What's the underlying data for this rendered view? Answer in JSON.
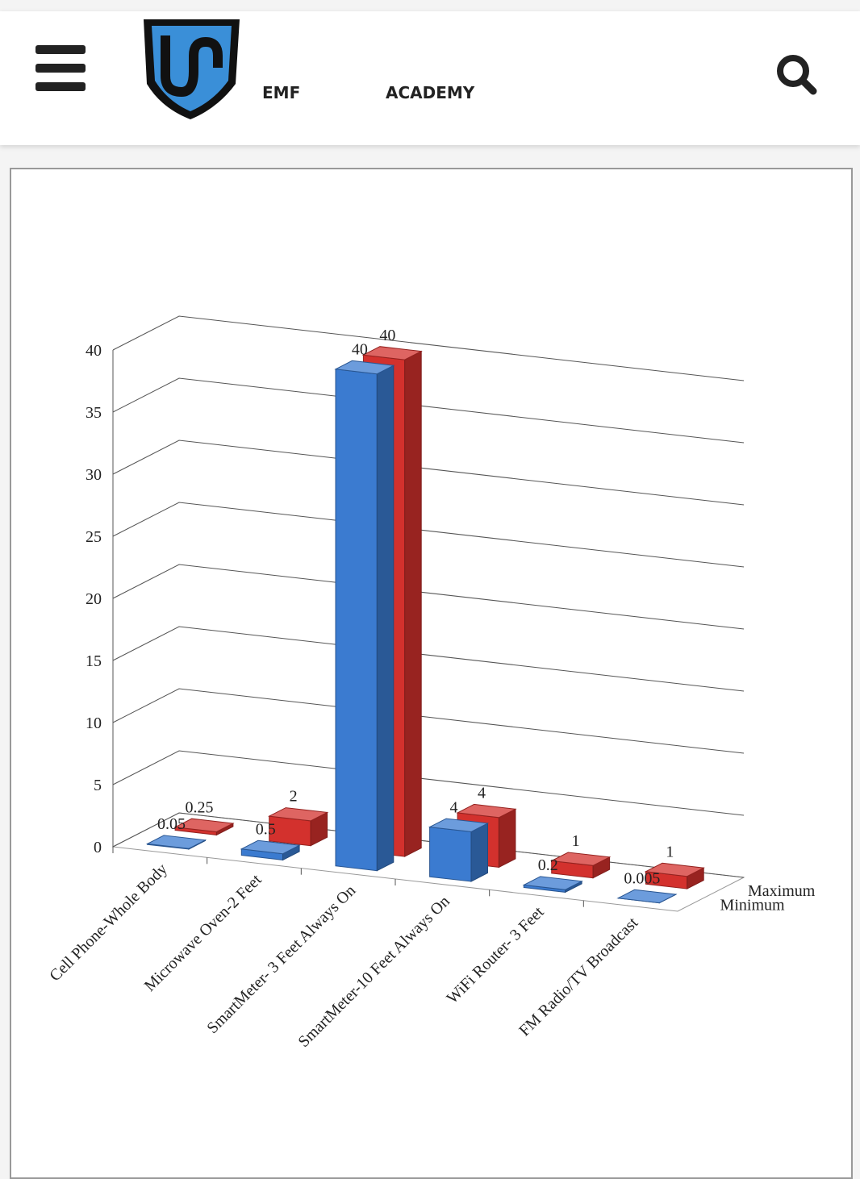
{
  "header": {
    "brand_primary": "EMF",
    "brand_secondary": "ACADEMY"
  },
  "chart_data": {
    "type": "bar3d",
    "categories": [
      "Cell Phone-Whole Body",
      "Microwave Oven-2 Feet",
      "SmartMeter- 3 Feet Always On",
      "SmartMeter-10 Feet Always On",
      "WiFi Router- 3 Feet",
      "FM Radio/TV Broadcast"
    ],
    "series": [
      {
        "name": "Minimum",
        "color": "#3b7bd0",
        "values": [
          0.05,
          0.5,
          40,
          4,
          0.2,
          0.005
        ]
      },
      {
        "name": "Maximum",
        "color": "#d3312d",
        "values": [
          0.25,
          2,
          40,
          4,
          1,
          1
        ]
      }
    ],
    "ylim": [
      0,
      40
    ],
    "yticks": [
      0,
      5,
      10,
      15,
      20,
      25,
      30,
      35,
      40
    ],
    "grid": true
  }
}
